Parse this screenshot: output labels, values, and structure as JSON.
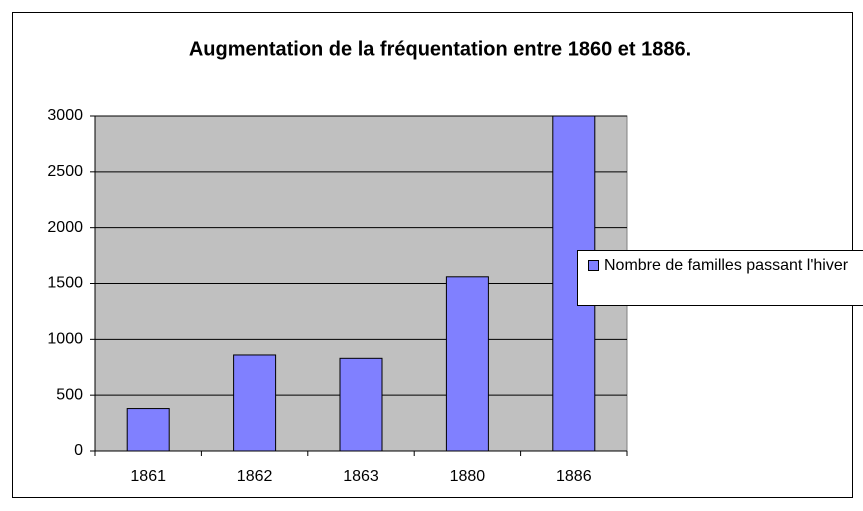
{
  "chart_data": {
    "type": "bar",
    "title": "Augmentation de la fréquentation entre 1860 et 1886.",
    "categories": [
      "1861",
      "1862",
      "1863",
      "1880",
      "1886"
    ],
    "series": [
      {
        "name": "Nombre de familles passant l'hiver",
        "color": "#8080ff",
        "values": [
          380,
          860,
          830,
          1560,
          3000
        ]
      }
    ],
    "ylim": [
      0,
      3000
    ],
    "yticks": [
      0,
      500,
      1000,
      1500,
      2000,
      2500,
      3000
    ],
    "grid": true,
    "legend": "right"
  }
}
